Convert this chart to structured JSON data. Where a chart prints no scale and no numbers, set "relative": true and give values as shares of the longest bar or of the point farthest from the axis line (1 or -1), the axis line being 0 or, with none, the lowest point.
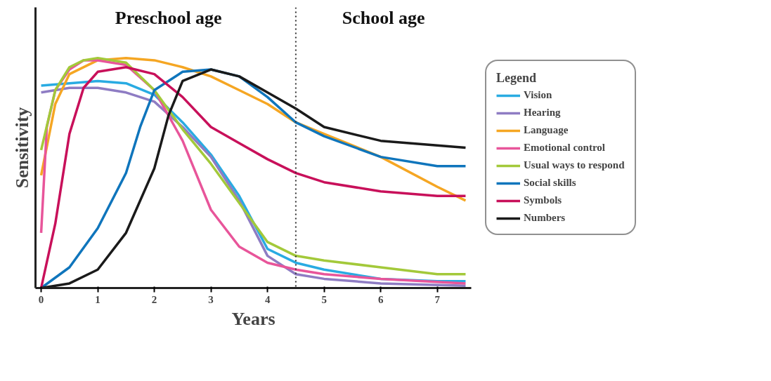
{
  "chart_data": {
    "type": "line",
    "relative": true,
    "xlabel": "Years",
    "ylabel": "Sensitivity",
    "legend_title": "Legend",
    "annotations": [
      "Preschool age",
      "School age"
    ],
    "xlim": [
      -0.1,
      7.6
    ],
    "xticks": [
      0,
      1,
      2,
      3,
      4,
      5,
      6,
      7
    ],
    "ref_lines": [
      {
        "axis": "x",
        "value": 4.5,
        "label": null,
        "color": "#333333",
        "line_style": "dotted"
      }
    ],
    "grid": false,
    "legend": "right",
    "marker": "none",
    "line_style": "solid",
    "series": [
      {
        "name": "Vision",
        "color": "#29abe2",
        "x": [
          0,
          1,
          1.5,
          2,
          2.5,
          3,
          3.5,
          4,
          4.5,
          5,
          6,
          7,
          7.5
        ],
        "values": [
          0.88,
          0.9,
          0.89,
          0.84,
          0.72,
          0.58,
          0.4,
          0.17,
          0.11,
          0.08,
          0.04,
          0.03,
          0.03
        ]
      },
      {
        "name": "Hearing",
        "color": "#8e7cc3",
        "x": [
          0,
          0.5,
          1,
          1.5,
          2,
          2.5,
          3,
          3.5,
          4,
          4.5,
          5,
          6,
          7.5
        ],
        "values": [
          0.85,
          0.87,
          0.87,
          0.85,
          0.81,
          0.7,
          0.57,
          0.38,
          0.14,
          0.06,
          0.04,
          0.02,
          0.01
        ]
      },
      {
        "name": "Language",
        "color": "#f5a623",
        "x": [
          0,
          0.25,
          0.5,
          1,
          1.5,
          2,
          2.5,
          3,
          3.5,
          4,
          4.5,
          5,
          6,
          7,
          7.5
        ],
        "values": [
          0.49,
          0.8,
          0.93,
          0.99,
          1.0,
          0.99,
          0.96,
          0.92,
          0.86,
          0.8,
          0.72,
          0.67,
          0.57,
          0.44,
          0.38
        ]
      },
      {
        "name": "Emotional control",
        "color": "#e8559a",
        "x": [
          0,
          0.1,
          0.25,
          0.5,
          0.75,
          1,
          1.5,
          2,
          2.5,
          3,
          3.5,
          4,
          4.5,
          5,
          6,
          7.5
        ],
        "values": [
          0.24,
          0.7,
          0.86,
          0.95,
          0.99,
          0.99,
          0.97,
          0.86,
          0.64,
          0.34,
          0.18,
          0.11,
          0.08,
          0.06,
          0.04,
          0.02
        ]
      },
      {
        "name": "Usual ways to respond",
        "color": "#a3c93a",
        "x": [
          0,
          0.25,
          0.5,
          0.75,
          1,
          1.5,
          2,
          2.5,
          3,
          3.5,
          4,
          4.5,
          5,
          6,
          7,
          7.5
        ],
        "values": [
          0.6,
          0.86,
          0.96,
          0.99,
          1.0,
          0.98,
          0.86,
          0.69,
          0.54,
          0.37,
          0.2,
          0.14,
          0.12,
          0.09,
          0.06,
          0.06
        ]
      },
      {
        "name": "Social skills",
        "color": "#0f75bc",
        "x": [
          0,
          0.5,
          1,
          1.5,
          1.75,
          2,
          2.5,
          3,
          3.5,
          4,
          4.5,
          5,
          6,
          7,
          7.5
        ],
        "values": [
          0,
          0.09,
          0.26,
          0.5,
          0.7,
          0.86,
          0.94,
          0.95,
          0.92,
          0.83,
          0.72,
          0.66,
          0.57,
          0.53,
          0.53
        ]
      },
      {
        "name": "Symbols",
        "color": "#c8105a",
        "x": [
          0,
          0.25,
          0.5,
          0.75,
          1,
          1.5,
          2,
          2.5,
          3,
          3.5,
          4,
          4.5,
          5,
          6,
          7,
          7.5
        ],
        "values": [
          0,
          0.28,
          0.67,
          0.87,
          0.94,
          0.96,
          0.93,
          0.83,
          0.7,
          0.63,
          0.56,
          0.5,
          0.46,
          0.42,
          0.4,
          0.4
        ]
      },
      {
        "name": "Numbers",
        "color": "#1a1a1a",
        "x": [
          0,
          0.5,
          1,
          1.5,
          2,
          2.25,
          2.5,
          3,
          3.5,
          4,
          4.5,
          5,
          6,
          7,
          7.5
        ],
        "values": [
          0,
          0.02,
          0.08,
          0.24,
          0.52,
          0.75,
          0.9,
          0.95,
          0.92,
          0.85,
          0.78,
          0.7,
          0.64,
          0.62,
          0.61
        ]
      }
    ]
  }
}
